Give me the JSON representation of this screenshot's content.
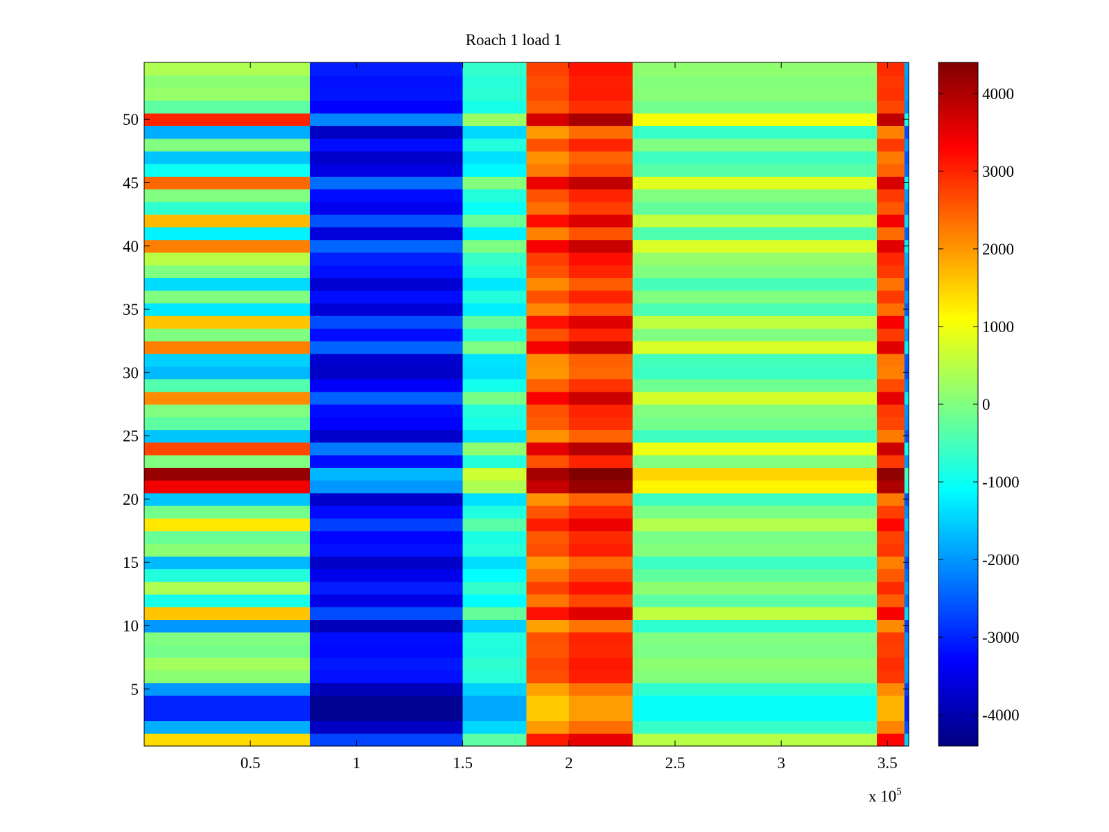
{
  "chart_data": {
    "type": "heatmap",
    "title": "Roach 1 load 1",
    "xlabel": "",
    "ylabel": "",
    "x_exponent_label": "x 10",
    "x_exponent": "5",
    "xlim": [
      0,
      3.6
    ],
    "ylim": [
      0.5,
      54.5
    ],
    "x_ticks": [
      0.5,
      1,
      1.5,
      2,
      2.5,
      3,
      3.5
    ],
    "x_tick_labels": [
      "0.5",
      "1",
      "1.5",
      "2",
      "2.5",
      "3",
      "3.5"
    ],
    "y_ticks": [
      5,
      10,
      15,
      20,
      25,
      30,
      35,
      40,
      45,
      50
    ],
    "y_tick_labels": [
      "5",
      "10",
      "15",
      "20",
      "25",
      "30",
      "35",
      "40",
      "45",
      "50"
    ],
    "colormap": "jet",
    "clim": [
      -4400,
      4400
    ],
    "colorbar": {
      "ticks": [
        -4000,
        -3000,
        -2000,
        -1000,
        0,
        1000,
        2000,
        3000,
        4000
      ],
      "tick_labels": [
        "-4000",
        "-3000",
        "-2000",
        "-1000",
        "0",
        "1000",
        "2000",
        "3000",
        "4000"
      ]
    },
    "rows": 54,
    "row_values_1_to_54": [
      1400,
      -1800,
      -3000,
      -3000,
      -2000,
      100,
      300,
      -100,
      0,
      -2000,
      1600,
      -900,
      400,
      -800,
      -1700,
      100,
      -200,
      1300,
      -100,
      -1600,
      3400,
      4200,
      0,
      2700,
      -1600,
      -300,
      0,
      2100,
      -400,
      -1700,
      -1500,
      2200,
      0,
      1600,
      -1300,
      0,
      -1400,
      0,
      500,
      2200,
      -1200,
      1700,
      -700,
      0,
      2400,
      -1000,
      -1600,
      0,
      -1800,
      3000,
      -300,
      200,
      100,
      400
    ],
    "x_segments": [
      {
        "x_start": 0.0,
        "x_end": 0.78,
        "value": "row value"
      },
      {
        "x_start": 0.78,
        "x_end": 1.5,
        "value": -3200
      },
      {
        "x_start": 1.5,
        "x_end": 1.8,
        "value": -800
      },
      {
        "x_start": 1.8,
        "x_end": 2.0,
        "value": 2600
      },
      {
        "x_start": 2.0,
        "x_end": 2.3,
        "value": 3000
      },
      {
        "x_start": 2.3,
        "x_end": 3.45,
        "value": 0
      },
      {
        "x_start": 3.45,
        "x_end": 3.58,
        "value": 2800
      },
      {
        "x_start": 3.58,
        "x_end": 3.6,
        "value": -2000
      }
    ]
  }
}
